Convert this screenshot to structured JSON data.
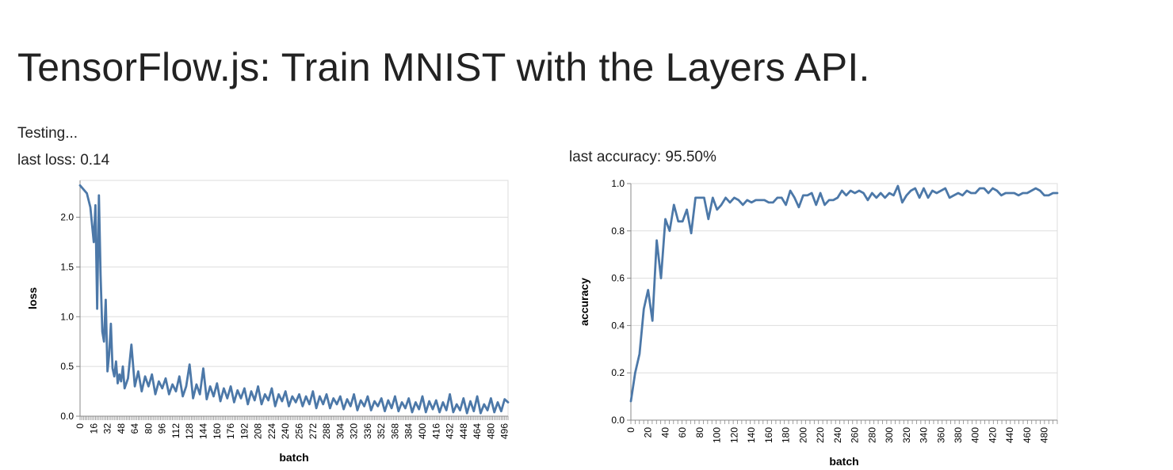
{
  "page": {
    "title": "TensorFlow.js: Train MNIST with the Layers API.",
    "status": "Testing...",
    "last_loss": "last loss: 0.14",
    "last_accuracy": "last accuracy: 95.50%"
  },
  "colors": {
    "series": "#4c78a8",
    "grid": "#dddddd",
    "axis": "#888888",
    "text": "#222222"
  },
  "chart_data": [
    {
      "type": "line",
      "xlabel": "batch",
      "ylabel": "loss",
      "xlim": [
        0,
        500
      ],
      "ylim": [
        0,
        2.37
      ],
      "yticks": [
        0.0,
        0.5,
        1.0,
        1.5,
        2.0
      ],
      "ytick_labels": [
        "0.0",
        "0.5",
        "1.0",
        "1.5",
        "2.0"
      ],
      "xticks": [
        0,
        16,
        32,
        48,
        64,
        80,
        96,
        112,
        128,
        144,
        160,
        176,
        192,
        208,
        224,
        240,
        256,
        272,
        288,
        304,
        320,
        336,
        352,
        368,
        384,
        400,
        416,
        432,
        448,
        464,
        480,
        496
      ],
      "xtick_labels": [
        "0",
        "16",
        "32",
        "48",
        "64",
        "80",
        "96",
        "112",
        "128",
        "144",
        "160",
        "176",
        "192",
        "208",
        "224",
        "240",
        "256",
        "272",
        "288",
        "304",
        "320",
        "336",
        "352",
        "368",
        "384",
        "400",
        "416",
        "432",
        "448",
        "464",
        "480",
        "496"
      ],
      "grid": true,
      "series": [
        {
          "x": [
            0,
            4,
            8,
            12,
            16,
            18,
            20,
            22,
            24,
            26,
            28,
            30,
            32,
            34,
            36,
            38,
            40,
            42,
            44,
            46,
            48,
            50,
            52,
            56,
            60,
            64,
            68,
            72,
            76,
            80,
            84,
            88,
            92,
            96,
            100,
            104,
            108,
            112,
            116,
            120,
            124,
            128,
            132,
            136,
            140,
            144,
            148,
            152,
            156,
            160,
            164,
            168,
            172,
            176,
            180,
            184,
            188,
            192,
            196,
            200,
            204,
            208,
            212,
            216,
            220,
            224,
            228,
            232,
            236,
            240,
            244,
            248,
            252,
            256,
            260,
            264,
            268,
            272,
            276,
            280,
            284,
            288,
            292,
            296,
            300,
            304,
            308,
            312,
            316,
            320,
            324,
            328,
            332,
            336,
            340,
            344,
            348,
            352,
            356,
            360,
            364,
            368,
            372,
            376,
            380,
            384,
            388,
            392,
            396,
            400,
            404,
            408,
            412,
            416,
            420,
            424,
            428,
            432,
            436,
            440,
            444,
            448,
            452,
            456,
            460,
            464,
            468,
            472,
            476,
            480,
            484,
            488,
            492,
            496,
            500
          ],
          "values": [
            2.32,
            2.28,
            2.24,
            2.1,
            1.75,
            2.12,
            1.08,
            2.22,
            1.42,
            0.85,
            0.75,
            1.17,
            0.45,
            0.62,
            0.93,
            0.48,
            0.4,
            0.55,
            0.33,
            0.42,
            0.35,
            0.5,
            0.28,
            0.38,
            0.72,
            0.3,
            0.45,
            0.25,
            0.4,
            0.3,
            0.42,
            0.22,
            0.35,
            0.28,
            0.38,
            0.22,
            0.32,
            0.25,
            0.4,
            0.2,
            0.3,
            0.52,
            0.18,
            0.32,
            0.22,
            0.48,
            0.17,
            0.3,
            0.2,
            0.33,
            0.15,
            0.28,
            0.18,
            0.3,
            0.14,
            0.26,
            0.18,
            0.28,
            0.12,
            0.25,
            0.16,
            0.3,
            0.12,
            0.22,
            0.16,
            0.28,
            0.1,
            0.22,
            0.15,
            0.25,
            0.1,
            0.2,
            0.14,
            0.22,
            0.1,
            0.2,
            0.12,
            0.25,
            0.08,
            0.2,
            0.12,
            0.22,
            0.08,
            0.18,
            0.12,
            0.2,
            0.07,
            0.17,
            0.1,
            0.22,
            0.06,
            0.16,
            0.1,
            0.2,
            0.06,
            0.15,
            0.1,
            0.18,
            0.05,
            0.16,
            0.08,
            0.2,
            0.05,
            0.14,
            0.08,
            0.18,
            0.04,
            0.14,
            0.07,
            0.2,
            0.04,
            0.15,
            0.07,
            0.16,
            0.04,
            0.14,
            0.06,
            0.22,
            0.04,
            0.12,
            0.06,
            0.18,
            0.03,
            0.15,
            0.05,
            0.2,
            0.03,
            0.12,
            0.06,
            0.18,
            0.04,
            0.14,
            0.05,
            0.17,
            0.14
          ]
        }
      ]
    },
    {
      "type": "line",
      "xlabel": "batch",
      "ylabel": "accuracy",
      "xlim": [
        0,
        495
      ],
      "ylim": [
        0,
        1.0
      ],
      "yticks": [
        0.0,
        0.2,
        0.4,
        0.6,
        0.8,
        1.0
      ],
      "ytick_labels": [
        "0.0",
        "0.2",
        "0.4",
        "0.6",
        "0.8",
        "1.0"
      ],
      "xticks": [
        0,
        20,
        40,
        60,
        80,
        100,
        120,
        140,
        160,
        180,
        200,
        220,
        240,
        260,
        280,
        300,
        320,
        340,
        360,
        380,
        400,
        420,
        440,
        460,
        480
      ],
      "xtick_labels": [
        "0",
        "20",
        "40",
        "60",
        "80",
        "100",
        "120",
        "140",
        "160",
        "180",
        "200",
        "220",
        "240",
        "260",
        "280",
        "300",
        "320",
        "340",
        "360",
        "380",
        "400",
        "420",
        "440",
        "460",
        "480"
      ],
      "grid": true,
      "series": [
        {
          "x": [
            0,
            5,
            10,
            15,
            20,
            25,
            30,
            35,
            40,
            45,
            50,
            55,
            60,
            65,
            70,
            75,
            80,
            85,
            90,
            95,
            100,
            105,
            110,
            115,
            120,
            125,
            130,
            135,
            140,
            145,
            150,
            155,
            160,
            165,
            170,
            175,
            180,
            185,
            190,
            195,
            200,
            205,
            210,
            215,
            220,
            225,
            230,
            235,
            240,
            245,
            250,
            255,
            260,
            265,
            270,
            275,
            280,
            285,
            290,
            295,
            300,
            305,
            310,
            315,
            320,
            325,
            330,
            335,
            340,
            345,
            350,
            355,
            360,
            365,
            370,
            375,
            380,
            385,
            390,
            395,
            400,
            405,
            410,
            415,
            420,
            425,
            430,
            435,
            440,
            445,
            450,
            455,
            460,
            465,
            470,
            475,
            480,
            485,
            490,
            495
          ],
          "values": [
            0.08,
            0.2,
            0.28,
            0.47,
            0.55,
            0.42,
            0.76,
            0.6,
            0.85,
            0.8,
            0.91,
            0.84,
            0.84,
            0.89,
            0.79,
            0.94,
            0.94,
            0.94,
            0.85,
            0.94,
            0.89,
            0.91,
            0.94,
            0.92,
            0.94,
            0.93,
            0.91,
            0.93,
            0.92,
            0.93,
            0.93,
            0.93,
            0.92,
            0.92,
            0.94,
            0.94,
            0.91,
            0.97,
            0.94,
            0.9,
            0.95,
            0.95,
            0.96,
            0.91,
            0.96,
            0.91,
            0.93,
            0.93,
            0.94,
            0.97,
            0.95,
            0.97,
            0.96,
            0.97,
            0.96,
            0.93,
            0.96,
            0.94,
            0.96,
            0.94,
            0.96,
            0.95,
            0.99,
            0.92,
            0.95,
            0.97,
            0.98,
            0.94,
            0.98,
            0.94,
            0.97,
            0.96,
            0.97,
            0.98,
            0.94,
            0.95,
            0.96,
            0.95,
            0.97,
            0.96,
            0.96,
            0.98,
            0.98,
            0.96,
            0.98,
            0.97,
            0.95,
            0.96,
            0.96,
            0.96,
            0.95,
            0.96,
            0.96,
            0.97,
            0.98,
            0.97,
            0.95,
            0.95,
            0.96,
            0.96
          ]
        }
      ]
    }
  ]
}
